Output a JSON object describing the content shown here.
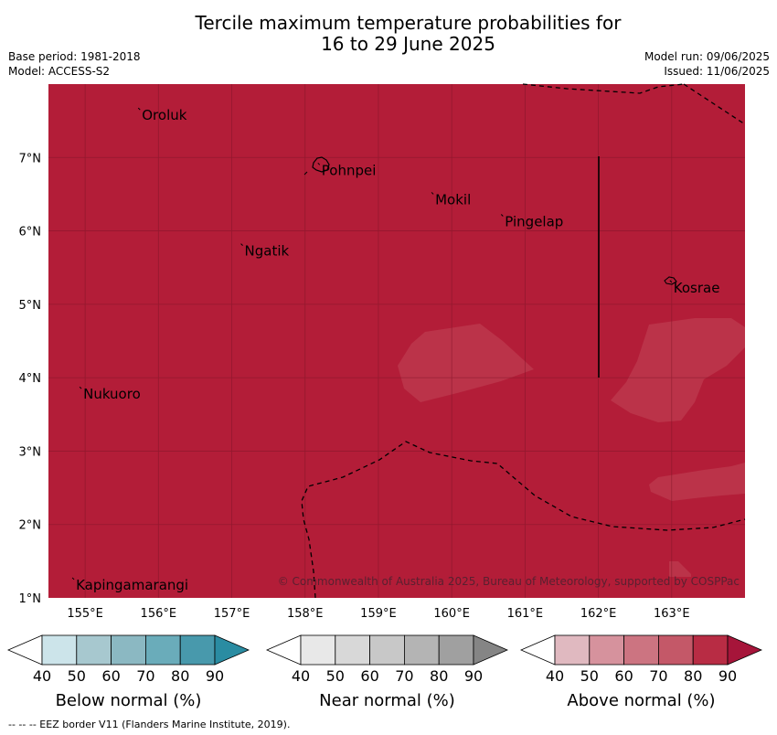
{
  "title": {
    "line1": "Tercile maximum temperature probabilities for",
    "line2": "16 to 29 June 2025"
  },
  "meta": {
    "base_period": "Base period: 1981-2018",
    "model": "Model: ACCESS-S2",
    "model_run": "Model run: 09/06/2025",
    "issued": "Issued: 11/06/2025"
  },
  "map": {
    "lon_range": [
      154.5,
      164.0
    ],
    "lat_range": [
      1.0,
      8.0
    ],
    "lon_ticks": [
      "155°E",
      "156°E",
      "157°E",
      "158°E",
      "159°E",
      "160°E",
      "161°E",
      "162°E",
      "163°E"
    ],
    "lat_ticks": [
      "7°N",
      "6°N",
      "5°N",
      "4°N",
      "3°N",
      "2°N",
      "1°N"
    ],
    "fill_category": "Above normal 80-90%",
    "colors": {
      "above_90": "#b31d38",
      "above_80": "#bb3349",
      "gridline": "#7a1426",
      "grid": "on"
    },
    "places": [
      {
        "name": "Oroluk",
        "lon": 155.75,
        "lat": 7.65
      },
      {
        "name": "Pohnpei",
        "lon": 158.2,
        "lat": 6.9
      },
      {
        "name": "Mokil",
        "lon": 159.75,
        "lat": 6.5
      },
      {
        "name": "Pingelap",
        "lon": 160.7,
        "lat": 6.2
      },
      {
        "name": "Ngatik",
        "lon": 157.15,
        "lat": 5.8
      },
      {
        "name": "Kosrae",
        "lon": 163.0,
        "lat": 5.3
      },
      {
        "name": "Nukuoro",
        "lon": 154.95,
        "lat": 3.85
      },
      {
        "name": "Kapingamarangi",
        "lon": 154.85,
        "lat": 1.25
      }
    ],
    "copyright": "© Commonwealth of Australia 2025, Bureau of Meteorology, supported by COSPPac"
  },
  "colorbars": [
    {
      "title": "Below normal (%)",
      "ticks": [
        "40",
        "50",
        "60",
        "70",
        "80",
        "90"
      ],
      "colors": [
        "#ffffff",
        "#cce4ea",
        "#a7c8cf",
        "#8bb8c2",
        "#6aacba",
        "#4899ac",
        "#2a8ca2"
      ]
    },
    {
      "title": "Near normal (%)",
      "ticks": [
        "40",
        "50",
        "60",
        "70",
        "80",
        "90"
      ],
      "colors": [
        "#ffffff",
        "#e8e8e8",
        "#d8d8d8",
        "#c8c8c8",
        "#b4b4b4",
        "#a0a0a0",
        "#858585"
      ]
    },
    {
      "title": "Above normal (%)",
      "ticks": [
        "40",
        "50",
        "60",
        "70",
        "80",
        "90"
      ],
      "colors": [
        "#ffffff",
        "#e0b9c0",
        "#d6929d",
        "#cc7481",
        "#c45868",
        "#b82c44",
        "#a6153a"
      ]
    }
  ],
  "footnote": "--  --  -- EEZ border V11 (Flanders Marine Institute, 2019)."
}
